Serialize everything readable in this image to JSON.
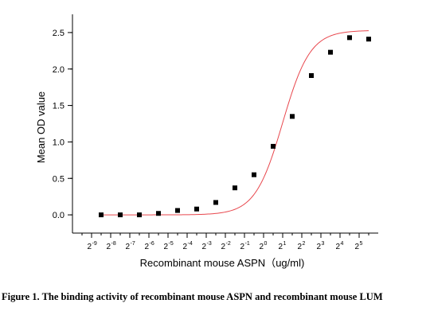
{
  "figure": {
    "caption": "Figure 1. The binding activity of recombinant mouse ASPN and recombinant mouse LUM"
  },
  "chart_data": {
    "type": "scatter",
    "xlabel": "Recombinant mouse  ASPN（ug/ml)",
    "ylabel": "Mean OD value",
    "x_scale": "log2",
    "x_ticks": [
      -9,
      -8,
      -7,
      -6,
      -5,
      -4,
      -3,
      -2,
      -1,
      0,
      1,
      2,
      3,
      4,
      5
    ],
    "x_tick_base": "2",
    "xlim": [
      -10,
      6
    ],
    "ylim": [
      -0.25,
      2.75
    ],
    "y_ticks": [
      0.0,
      0.5,
      1.0,
      1.5,
      2.0,
      2.5
    ],
    "y_tick_labels": [
      "0.0",
      "0.5",
      "1.0",
      "1.5",
      "2.0",
      "2.5"
    ],
    "series": [
      {
        "marker": "square",
        "color": "#000000",
        "points": [
          {
            "x": -8.5,
            "y": 0.0
          },
          {
            "x": -7.5,
            "y": 0.0
          },
          {
            "x": -6.5,
            "y": 0.0
          },
          {
            "x": -5.5,
            "y": 0.02
          },
          {
            "x": -4.5,
            "y": 0.06
          },
          {
            "x": -3.5,
            "y": 0.08
          },
          {
            "x": -2.5,
            "y": 0.17
          },
          {
            "x": -1.5,
            "y": 0.37
          },
          {
            "x": -0.5,
            "y": 0.55
          },
          {
            "x": 0.5,
            "y": 0.94
          },
          {
            "x": 1.5,
            "y": 1.35
          },
          {
            "x": 2.5,
            "y": 1.91
          },
          {
            "x": 3.5,
            "y": 2.23
          },
          {
            "x": 4.5,
            "y": 2.43
          },
          {
            "x": 5.5,
            "y": 2.41
          }
        ]
      }
    ],
    "fit_curve": {
      "model": "four-parameter logistic",
      "color": "#e8474d",
      "bottom": 0.0,
      "top": 2.53,
      "x50": 1.0,
      "slope_log2": 0.72
    },
    "grid": false,
    "legend": "none"
  }
}
